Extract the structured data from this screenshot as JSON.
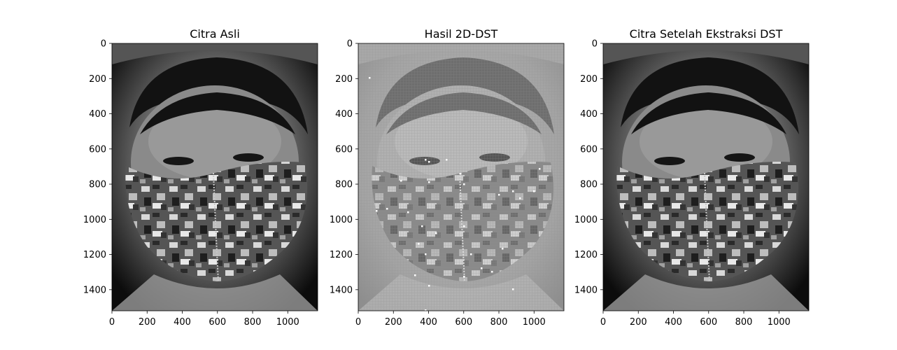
{
  "figure": {
    "background": "#ffffff"
  },
  "chart_data": [
    {
      "type": "image",
      "title": "Citra Asli",
      "xticks": [
        "0",
        "200",
        "400",
        "600",
        "800",
        "1000"
      ],
      "yticks": [
        "0",
        "200",
        "400",
        "600",
        "800",
        "1000",
        "1200",
        "1400"
      ],
      "xlim": [
        0,
        1170
      ],
      "ylim": [
        1520,
        0
      ],
      "content": "grayscale photo of a face wearing a camouflage mask"
    },
    {
      "type": "image",
      "title": "Hasil 2D-DST",
      "xticks": [
        "0",
        "200",
        "400",
        "600",
        "800",
        "1000"
      ],
      "yticks": [
        "0",
        "200",
        "400",
        "600",
        "800",
        "1000",
        "1200",
        "1400"
      ],
      "xlim": [
        0,
        1170
      ],
      "ylim": [
        1520,
        0
      ],
      "content": "low-contrast grid-textured transformed image with scattered white pixels"
    },
    {
      "type": "image",
      "title": "Citra Setelah Ekstraksi DST",
      "xticks": [
        "0",
        "200",
        "400",
        "600",
        "800",
        "1000"
      ],
      "yticks": [
        "0",
        "200",
        "400",
        "600",
        "800",
        "1000",
        "1200",
        "1400"
      ],
      "xlim": [
        0,
        1170
      ],
      "ylim": [
        1520,
        0
      ],
      "content": "reconstructed grayscale photo, visually identical to the original"
    }
  ]
}
